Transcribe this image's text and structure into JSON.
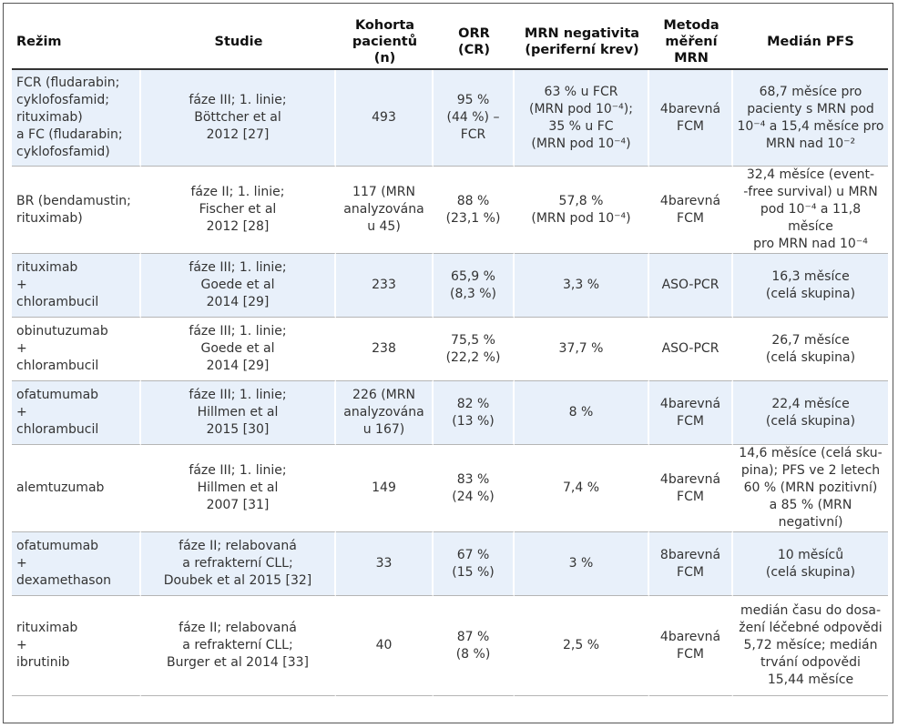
{
  "headers": [
    "Režim",
    "Studie",
    "Kohorta\npacientů (n)",
    "ORR\n(CR)",
    "MRN negativita\n(periferní krev)",
    "Metoda\nměření\nMRN",
    "Medián PFS"
  ],
  "rows": [
    {
      "regime": "FCR (fludarabin;\ncyklofosfamid;\nrituximab)\na FC (fludarabin;\ncyklofosfamid)",
      "study": "fáze III; 1. linie;\nBöttcher et al\n2012 [27]",
      "cohort": "493",
      "orr": "95 %\n(44 %) –\nFCR",
      "mrn_neg": "63 % u FCR\n(MRN pod 10⁻⁴);\n35 % u FC\n(MRN pod 10⁻⁴)",
      "method": "4barevná\nFCM",
      "pfs": "68,7 měsíce pro\npacienty s MRN pod\n10⁻⁴ a 15,4 měsíce pro\nMRN nad 10⁻²"
    },
    {
      "regime": "BR (bendamustin;\nrituximab)",
      "study": "fáze II; 1. linie;\nFischer et al\n2012 [28]",
      "cohort": "117 (MRN\nanalyzována\nu 45)",
      "orr": "88 %\n(23,1 %)",
      "mrn_neg": "57,8 %\n(MRN pod 10⁻⁴)",
      "method": "4barevná\nFCM",
      "pfs": "32,4 měsíce (event-\n-free survival) u MRN\npod 10⁻⁴ a 11,8 měsíce\npro MRN nad 10⁻⁴"
    },
    {
      "regime": "rituximab\n+\nchlorambucil",
      "study": "fáze III; 1. linie;\nGoede et al\n2014 [29]",
      "cohort": "233",
      "orr": "65,9 %\n(8,3 %)",
      "mrn_neg": "3,3 %",
      "method": "ASO-PCR",
      "pfs": "16,3 měsíce\n(celá skupina)"
    },
    {
      "regime": "obinutuzumab\n+\nchlorambucil",
      "study": "fáze III; 1. linie;\nGoede et al\n2014 [29]",
      "cohort": "238",
      "orr": "75,5 %\n(22,2 %)",
      "mrn_neg": "37,7 %",
      "method": "ASO-PCR",
      "pfs": "26,7 měsíce\n(celá skupina)"
    },
    {
      "regime": "ofatumumab\n+\nchlorambucil",
      "study": "fáze III; 1. linie;\nHillmen et al\n2015 [30]",
      "cohort": "226 (MRN\nanalyzována\nu 167)",
      "orr": "82 %\n(13 %)",
      "mrn_neg": "8 %",
      "method": "4barevná\nFCM",
      "pfs": "22,4 měsíce\n(celá skupina)"
    },
    {
      "regime": "alemtuzumab",
      "study": "fáze III; 1. linie;\nHillmen et al\n2007 [31]",
      "cohort": "149",
      "orr": "83 %\n(24 %)",
      "mrn_neg": "7,4 %",
      "method": "4barevná\nFCM",
      "pfs": "14,6 měsíce (celá sku-\npina); PFS ve 2 letech\n60 % (MRN pozitivní)\na 85 % (MRN negativní)"
    },
    {
      "regime": "ofatumumab\n+\ndexamethason",
      "study": "fáze II; relabovaná\na refrakterní CLL;\nDoubek et al 2015 [32]",
      "cohort": "33",
      "orr": "67 %\n(15 %)",
      "mrn_neg": "3 %",
      "method": "8barevná\nFCM",
      "pfs": "10 měsíců\n(celá skupina)"
    },
    {
      "regime": "rituximab\n+\nibrutinib",
      "study": "fáze II; relabovaná\na refrakterní CLL;\nBurger et al 2014 [33]",
      "cohort": "40",
      "orr": "87 %\n(8 %)",
      "mrn_neg": "2,5 %",
      "method": "4barevná\nFCM",
      "pfs": "medián času do dosa-\nžení léčebné odpovědi\n5,72 měsíce; medián\ntrvání odpovědi\n15,44 měsíce"
    }
  ],
  "colors": {
    "shaded_row": "#e8f0fa",
    "header_rule": "#333333",
    "row_rule": "#b5b5b5"
  }
}
